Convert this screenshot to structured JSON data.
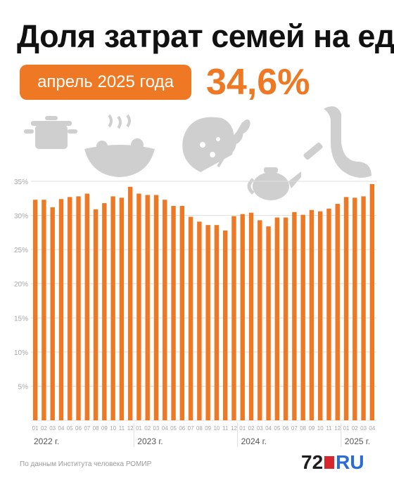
{
  "header": {
    "title": "Доля затрат семей на еду",
    "period": "апрель 2025 года",
    "value": "34,6%"
  },
  "footer": {
    "source": "По данным Института человека РОМИР",
    "logo_number": "72",
    "logo_text": "RU"
  },
  "colors": {
    "accent": "#ee7823",
    "icon": "#cfcfcf",
    "grid": "#dddddd",
    "axis_text": "#a6a6a6",
    "year_text": "#555555",
    "logo_red": "#d7262c",
    "logo_blue": "#2b6bd8"
  },
  "illustration": {
    "icons": [
      "pot-icon",
      "salad-bowl-icon",
      "bread-icon",
      "wheat-icon",
      "teapot-icon",
      "sausage-icon"
    ]
  },
  "chart_data": {
    "type": "bar",
    "ylim": [
      0,
      35
    ],
    "yticks": [
      5,
      10,
      15,
      20,
      25,
      30,
      35
    ],
    "ytick_labels": [
      "5%",
      "10%",
      "15%",
      "20%",
      "25%",
      "30%",
      "35%"
    ],
    "grid": "horizontal",
    "categories": [
      "01",
      "02",
      "03",
      "04",
      "05",
      "06",
      "07",
      "08",
      "09",
      "10",
      "11",
      "12",
      "01",
      "02",
      "03",
      "04",
      "05",
      "06",
      "07",
      "08",
      "09",
      "10",
      "11",
      "12",
      "01",
      "02",
      "03",
      "04",
      "05",
      "06",
      "07",
      "08",
      "09",
      "10",
      "11",
      "12",
      "01",
      "02",
      "03",
      "04"
    ],
    "values": [
      32.3,
      32.3,
      31.2,
      32.4,
      32.7,
      32.8,
      33.2,
      30.9,
      31.8,
      32.8,
      32.6,
      34.2,
      33.2,
      33.0,
      33.0,
      32.3,
      31.4,
      31.4,
      29.8,
      29.1,
      28.6,
      28.6,
      27.8,
      29.9,
      30.2,
      30.4,
      29.3,
      28.4,
      29.7,
      29.7,
      30.5,
      30.1,
      30.8,
      30.6,
      31.0,
      31.7,
      32.7,
      32.6,
      32.8,
      34.6
    ],
    "year_groups": [
      {
        "label": "2022 г.",
        "start_index": 0
      },
      {
        "label": "2023 г.",
        "start_index": 12
      },
      {
        "label": "2024 г.",
        "start_index": 24
      },
      {
        "label": "2025 г.",
        "start_index": 36
      }
    ]
  }
}
